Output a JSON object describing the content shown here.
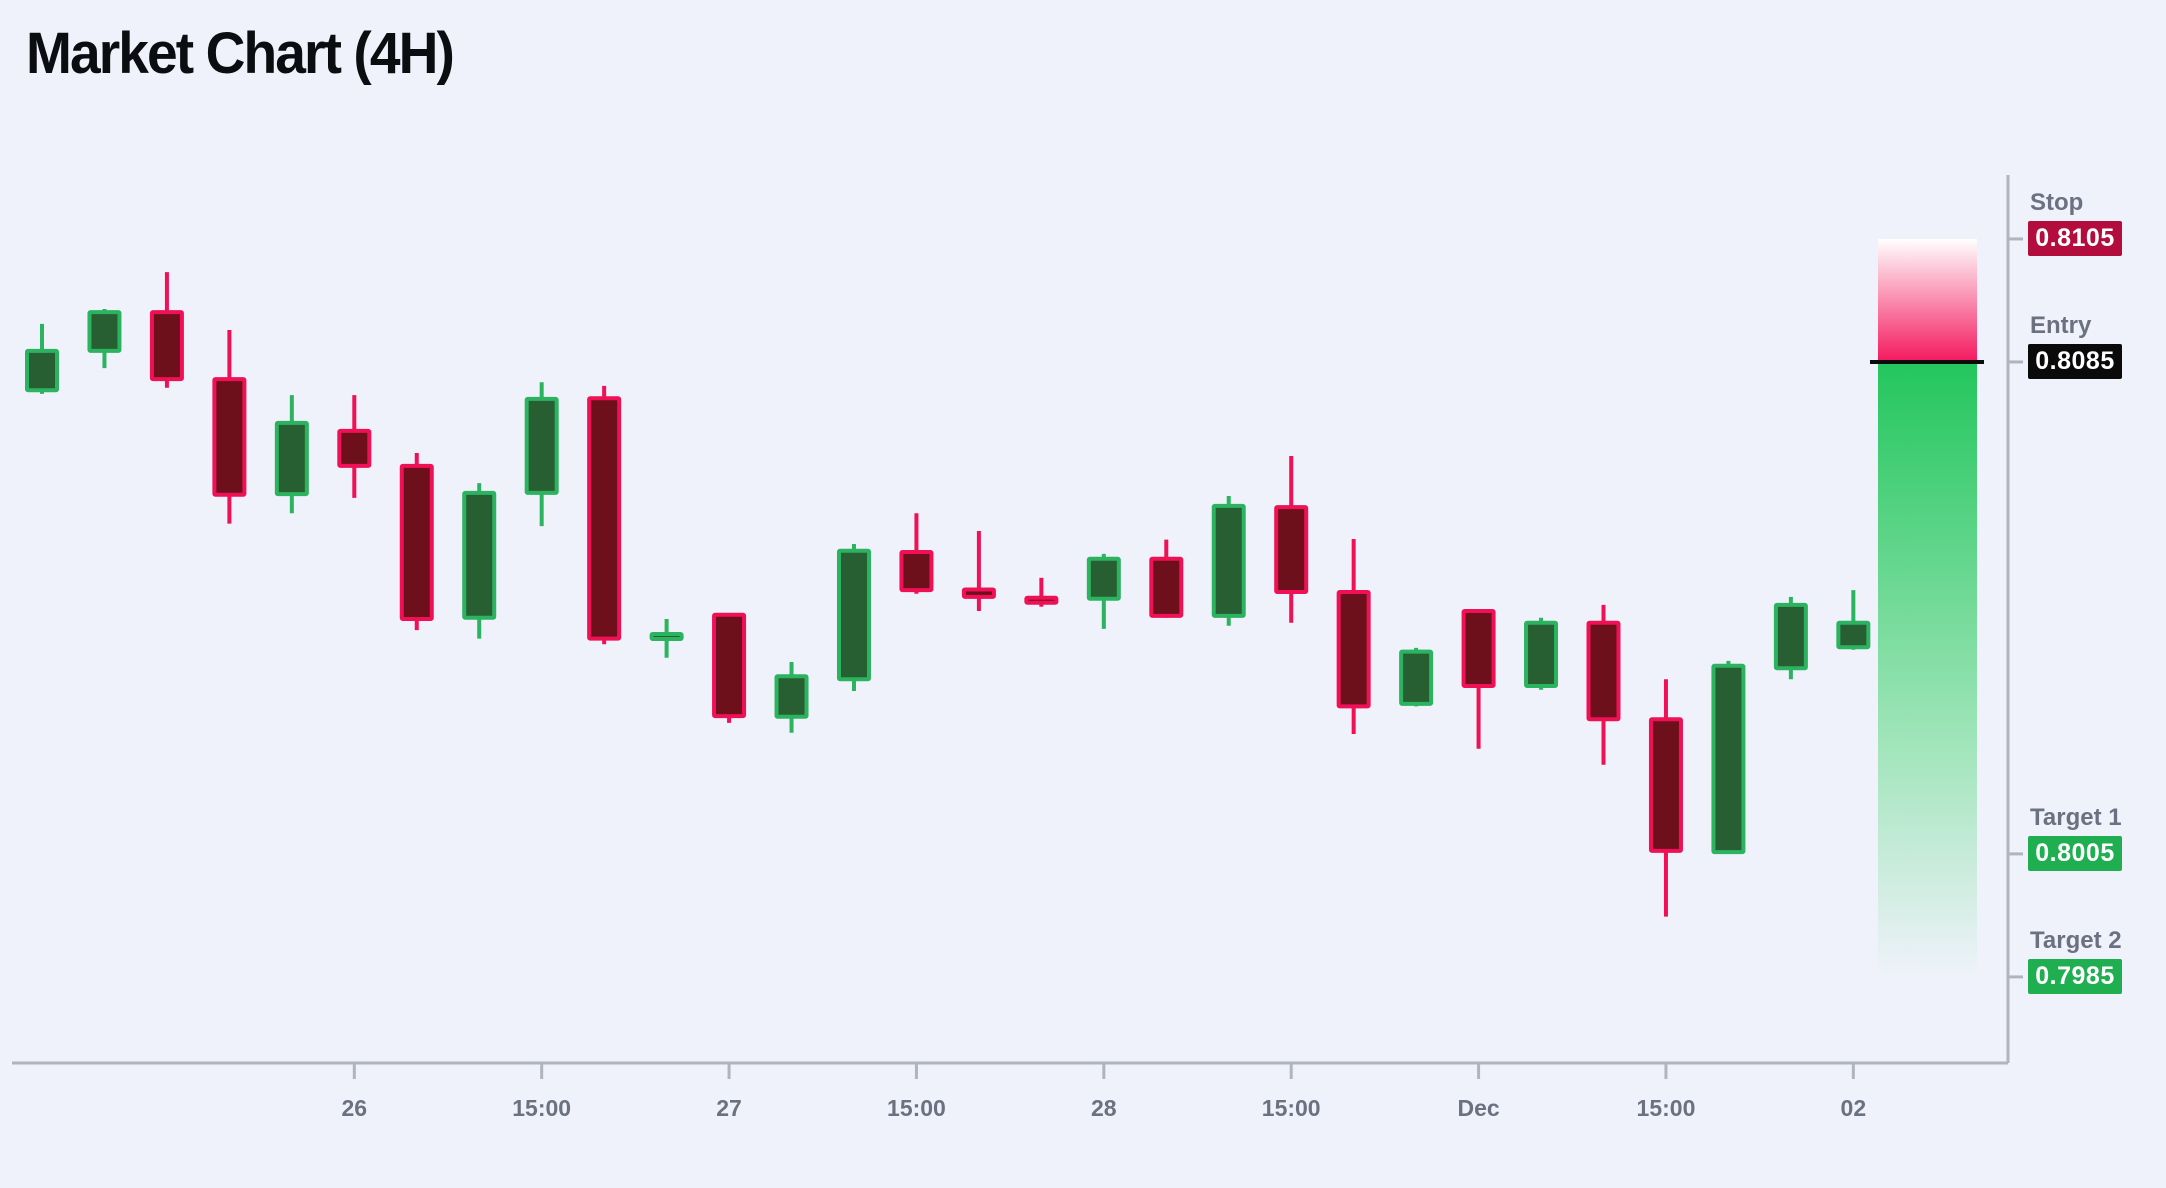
{
  "title": "Market Chart (4H)",
  "colors": {
    "background": "#eff2fa",
    "title_text": "#0c0d10",
    "label_text": "#6b7180",
    "axis": "#b0b4bf",
    "bull_border": "#2cb35f",
    "bull_fill": "#275f33",
    "bear_border": "#f01055",
    "bear_fill": "#6d101c",
    "stop_badge": "#b30d3e",
    "entry_badge": "#0a0a0b",
    "target_badge": "#1fae50",
    "badge_text": "#ffffff",
    "entry_line": "#0b0b0c",
    "risk_gradient_from": "#ffffff",
    "risk_gradient_to": "#f4185e",
    "reward_gradient_from": "#23c65d",
    "reward_gradient_mid": "#9ce4b7"
  },
  "price_lines": [
    {
      "id": "stop",
      "kind": "stop",
      "label": "Stop",
      "value": "0.8105",
      "price": 0.8105
    },
    {
      "id": "entry",
      "kind": "entry",
      "label": "Entry",
      "value": "0.8085",
      "price": 0.8085
    },
    {
      "id": "target1",
      "kind": "target",
      "label": "Target 1",
      "value": "0.8005",
      "price": 0.8005
    },
    {
      "id": "target2",
      "kind": "target",
      "label": "Target 2",
      "value": "0.7985",
      "price": 0.7985
    }
  ],
  "zones": {
    "risk": {
      "from_price": 0.8105,
      "to_price": 0.8085
    },
    "reward": {
      "from_price": 0.8085,
      "to_price": 0.7985
    }
  },
  "chart_data": {
    "type": "candlestick",
    "title": "Market Chart (4H)",
    "timeframe": "4H",
    "ylim": [
      0.7971,
      0.81154
    ],
    "grid": false,
    "y_axis_side": "right",
    "x_tick_labels": [
      "26",
      "15:00",
      "27",
      "15:00",
      "28",
      "15:00",
      "Dec",
      "15:00",
      "02"
    ],
    "x_ticks": [
      {
        "index": 5,
        "label": "26"
      },
      {
        "index": 8,
        "label": "15:00"
      },
      {
        "index": 11,
        "label": "27"
      },
      {
        "index": 14,
        "label": "15:00"
      },
      {
        "index": 17,
        "label": "28"
      },
      {
        "index": 20,
        "label": "15:00"
      },
      {
        "index": 23,
        "label": "Dec"
      },
      {
        "index": 26,
        "label": "15:00"
      },
      {
        "index": 29,
        "label": "02"
      }
    ],
    "candles": [
      {
        "o": 0.80804,
        "h": 0.80912,
        "l": 0.80798,
        "c": 0.80868
      },
      {
        "o": 0.80868,
        "h": 0.80936,
        "l": 0.8084,
        "c": 0.80931
      },
      {
        "o": 0.80931,
        "h": 0.80996,
        "l": 0.80808,
        "c": 0.80822
      },
      {
        "o": 0.80822,
        "h": 0.80902,
        "l": 0.80587,
        "c": 0.80634
      },
      {
        "o": 0.80635,
        "h": 0.80796,
        "l": 0.80604,
        "c": 0.80751
      },
      {
        "o": 0.80738,
        "h": 0.80796,
        "l": 0.80629,
        "c": 0.80681
      },
      {
        "o": 0.80681,
        "h": 0.80702,
        "l": 0.80414,
        "c": 0.80432
      },
      {
        "o": 0.80434,
        "h": 0.80653,
        "l": 0.804,
        "c": 0.80637
      },
      {
        "o": 0.80637,
        "h": 0.80817,
        "l": 0.80583,
        "c": 0.8079
      },
      {
        "o": 0.80791,
        "h": 0.80811,
        "l": 0.80391,
        "c": 0.804
      },
      {
        "o": 0.80401,
        "h": 0.80432,
        "l": 0.80369,
        "c": 0.80406
      },
      {
        "o": 0.80439,
        "h": 0.80439,
        "l": 0.80263,
        "c": 0.80274
      },
      {
        "o": 0.80273,
        "h": 0.80362,
        "l": 0.80247,
        "c": 0.80339
      },
      {
        "o": 0.80334,
        "h": 0.80554,
        "l": 0.80315,
        "c": 0.80543
      },
      {
        "o": 0.80541,
        "h": 0.80604,
        "l": 0.80473,
        "c": 0.80479
      },
      {
        "o": 0.8048,
        "h": 0.80575,
        "l": 0.80445,
        "c": 0.80468
      },
      {
        "o": 0.80465,
        "h": 0.80499,
        "l": 0.80452,
        "c": 0.8046
      },
      {
        "o": 0.80465,
        "h": 0.80538,
        "l": 0.80416,
        "c": 0.8053
      },
      {
        "o": 0.8053,
        "h": 0.80561,
        "l": 0.80434,
        "c": 0.80437
      },
      {
        "o": 0.80437,
        "h": 0.80632,
        "l": 0.80421,
        "c": 0.80616
      },
      {
        "o": 0.80614,
        "h": 0.80697,
        "l": 0.80426,
        "c": 0.80476
      },
      {
        "o": 0.80476,
        "h": 0.80562,
        "l": 0.80245,
        "c": 0.8029
      },
      {
        "o": 0.80294,
        "h": 0.80385,
        "l": 0.8029,
        "c": 0.80379
      },
      {
        "o": 0.80445,
        "h": 0.80445,
        "l": 0.80221,
        "c": 0.80323
      },
      {
        "o": 0.80323,
        "h": 0.80434,
        "l": 0.80317,
        "c": 0.80426
      },
      {
        "o": 0.80426,
        "h": 0.80455,
        "l": 0.80195,
        "c": 0.80269
      },
      {
        "o": 0.80269,
        "h": 0.80334,
        "l": 0.79948,
        "c": 0.80055
      },
      {
        "o": 0.80053,
        "h": 0.80364,
        "l": 0.8005,
        "c": 0.80356
      },
      {
        "o": 0.80352,
        "h": 0.80468,
        "l": 0.80334,
        "c": 0.80455
      },
      {
        "o": 0.80386,
        "h": 0.80479,
        "l": 0.80382,
        "c": 0.80426
      }
    ]
  }
}
